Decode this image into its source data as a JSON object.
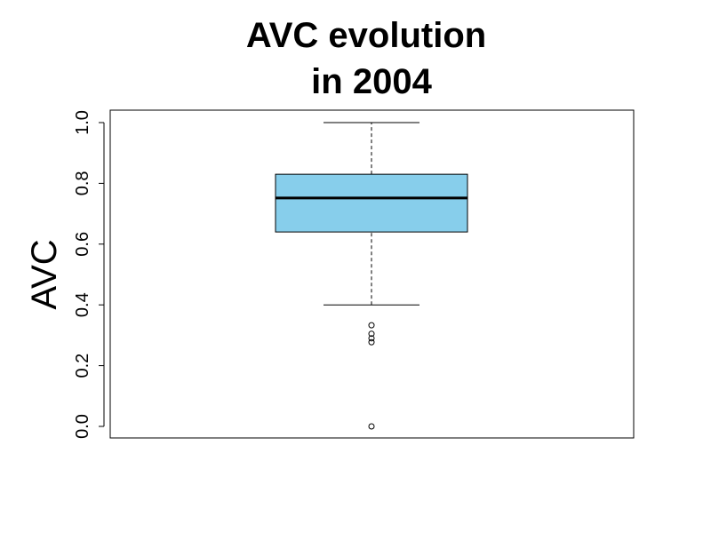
{
  "chart_data": {
    "type": "box",
    "title": [
      "AVC evolution",
      "in 2004"
    ],
    "xlabel": "",
    "ylabel": "AVC",
    "ylim": [
      0,
      1
    ],
    "yticks": [
      "0.0",
      "0.2",
      "0.4",
      "0.6",
      "0.8",
      "1.0"
    ],
    "grid": false,
    "box": {
      "whisker_low": 0.4,
      "q1": 0.64,
      "median": 0.752,
      "q3": 0.83,
      "whisker_high": 1.0,
      "outliers": [
        0.333,
        0.305,
        0.29,
        0.277,
        0.0
      ]
    },
    "colors": {
      "box_fill": "#87ceeb",
      "stroke": "#000000"
    }
  }
}
